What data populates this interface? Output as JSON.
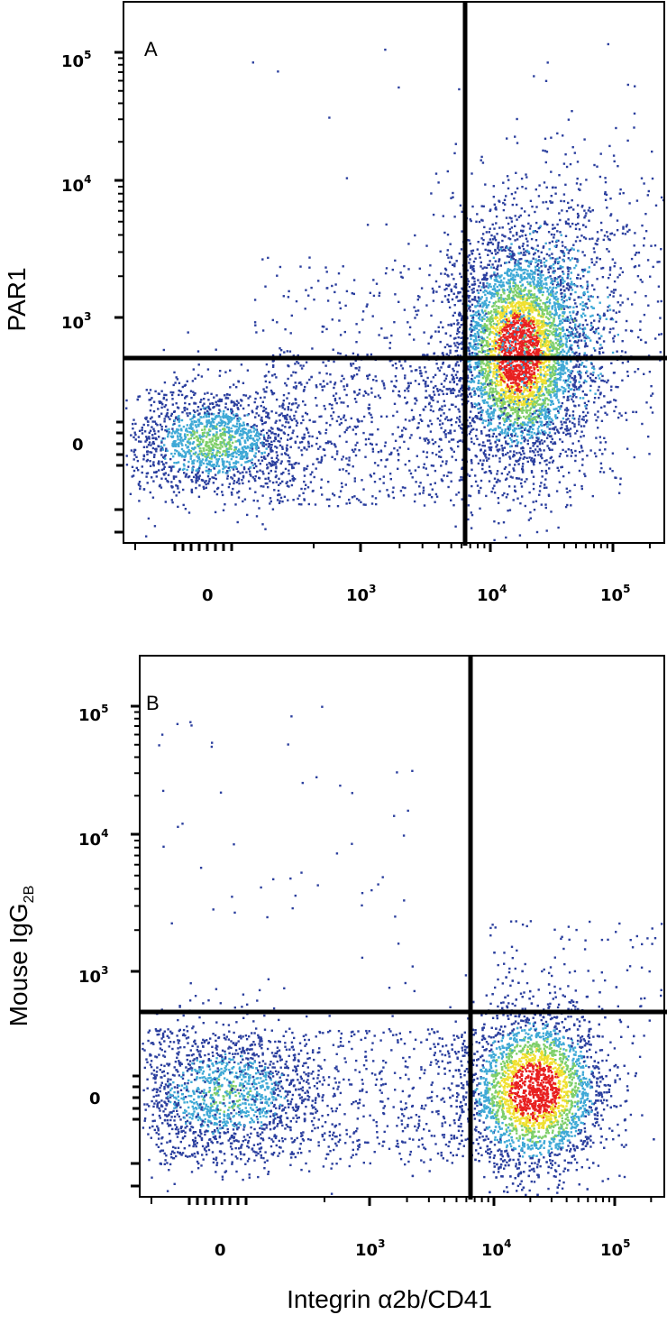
{
  "chart_data": [
    {
      "type": "scatter",
      "subtype": "flow-cytometry-density-dot-plot",
      "panel_label": "A",
      "x_axis": {
        "scale": "biexponential",
        "tick_labels": [
          {
            "base": "0",
            "exp": ""
          },
          {
            "base": "10",
            "exp": "3"
          },
          {
            "base": "10",
            "exp": "4"
          },
          {
            "base": "10",
            "exp": "5"
          }
        ]
      },
      "y_axis": {
        "scale": "biexponential",
        "label": "PAR1",
        "tick_labels": [
          {
            "base": "0",
            "exp": ""
          },
          {
            "base": "10",
            "exp": "3"
          },
          {
            "base": "10",
            "exp": "4"
          },
          {
            "base": "10",
            "exp": "5"
          }
        ]
      },
      "quadrant_gate": {
        "x": 6000,
        "y": 600
      },
      "populations": [
        {
          "description": "CD41-negative, PAR1-negative cluster",
          "x_center": 0,
          "y_center": 0,
          "relative_density": "medium"
        },
        {
          "description": "CD41-positive, PAR1-positive cluster",
          "x_center": 18000,
          "y_center": 700,
          "relative_density": "high"
        }
      ]
    },
    {
      "type": "scatter",
      "subtype": "flow-cytometry-density-dot-plot",
      "panel_label": "B",
      "x_axis": {
        "scale": "biexponential",
        "tick_labels": [
          {
            "base": "0",
            "exp": ""
          },
          {
            "base": "10",
            "exp": "3"
          },
          {
            "base": "10",
            "exp": "4"
          },
          {
            "base": "10",
            "exp": "5"
          }
        ]
      },
      "y_axis": {
        "scale": "biexponential",
        "label": "Mouse IgG",
        "label_sub": "2B",
        "tick_labels": [
          {
            "base": "0",
            "exp": ""
          },
          {
            "base": "10",
            "exp": "3"
          },
          {
            "base": "10",
            "exp": "4"
          },
          {
            "base": "10",
            "exp": "5"
          }
        ]
      },
      "quadrant_gate": {
        "x": 6000,
        "y": 600
      },
      "populations": [
        {
          "description": "CD41-negative, isotype-negative cluster",
          "x_center": 0,
          "y_center": 0,
          "relative_density": "medium"
        },
        {
          "description": "CD41-positive, isotype-negative cluster",
          "x_center": 20000,
          "y_center": 0,
          "relative_density": "high"
        }
      ]
    }
  ],
  "shared_x_label": "Integrin α2b/CD41",
  "colors": {
    "frame": "#000000",
    "gate": "#000000",
    "density_low": "#2b3f9e",
    "density_mid": "#3fa9d6",
    "density_midhigh": "#7fcf6a",
    "density_high": "#f0e030",
    "density_peak": "#e82020"
  }
}
